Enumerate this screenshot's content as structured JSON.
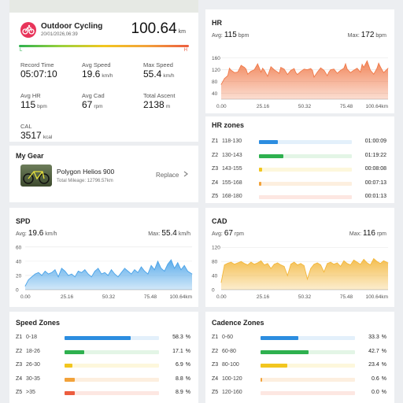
{
  "summary": {
    "title": "Outdoor Cycling",
    "date": "20/01/2026,06:39",
    "distance": "100.64",
    "distance_unit": "km",
    "bar_left": "L",
    "bar_right": "H",
    "stats": [
      {
        "label": "Record Time",
        "value": "05:07:10",
        "unit": ""
      },
      {
        "label": "Avg Speed",
        "value": "19.6",
        "unit": "km/h"
      },
      {
        "label": "Max Speed",
        "value": "55.4",
        "unit": "km/h"
      },
      {
        "label": "Avg HR",
        "value": "115",
        "unit": "bpm"
      },
      {
        "label": "Avg Cad",
        "value": "67",
        "unit": "rpm"
      },
      {
        "label": "Total Ascent",
        "value": "2138",
        "unit": "m"
      },
      {
        "label": "CAL",
        "value": "3517",
        "unit": "kcal"
      }
    ]
  },
  "gear": {
    "heading": "My Gear",
    "name": "Polygon Helios 900",
    "mileage": "Total Mileage: 12796.57km",
    "replace_label": "Replace",
    "chevron_icon": "chevron-right-icon"
  },
  "hr_chart": {
    "title": "HR",
    "avg_label": "Avg:",
    "avg_value": "115",
    "avg_unit": "bpm",
    "max_label": "Max:",
    "max_value": "172",
    "max_unit": "bpm"
  },
  "spd_chart": {
    "title": "SPD",
    "avg_label": "Avg:",
    "avg_value": "19.6",
    "avg_unit": "km/h",
    "max_label": "Max:",
    "max_value": "55.4",
    "max_unit": "km/h"
  },
  "cad_chart": {
    "title": "CAD",
    "avg_label": "Avg:",
    "avg_value": "67",
    "avg_unit": "rpm",
    "max_label": "Max:",
    "max_value": "116",
    "max_unit": "rpm"
  },
  "chart_data": [
    {
      "type": "area",
      "id": "hr",
      "x_ticks": [
        "0.00",
        "25.16",
        "50.32",
        "75.48",
        "100.64km"
      ],
      "y_ticks": [
        "40",
        "80",
        "120",
        "160"
      ],
      "xlim": [
        0,
        100.64
      ],
      "ylim": [
        20,
        175
      ],
      "color": "#f07a4a",
      "x": [
        0,
        2,
        4,
        5,
        6,
        8,
        10,
        12,
        14,
        15,
        16,
        18,
        20,
        22,
        24,
        25,
        26,
        28,
        30,
        32,
        34,
        35,
        36,
        38,
        40,
        42,
        44,
        45,
        46,
        48,
        50,
        52,
        54,
        55,
        56,
        58,
        60,
        62,
        64,
        65,
        66,
        68,
        70,
        72,
        74,
        75,
        76,
        78,
        80,
        82,
        84,
        85,
        86,
        88,
        90,
        92,
        94,
        95,
        96,
        98,
        100.64
      ],
      "y": [
        70,
        90,
        100,
        125,
        118,
        110,
        112,
        135,
        128,
        122,
        105,
        115,
        120,
        140,
        112,
        125,
        118,
        98,
        130,
        120,
        112,
        108,
        128,
        122,
        104,
        118,
        124,
        110,
        104,
        114,
        122,
        120,
        124,
        118,
        95,
        112,
        126,
        118,
        100,
        112,
        120,
        122,
        108,
        118,
        125,
        140,
        122,
        110,
        118,
        125,
        112,
        138,
        128,
        150,
        118,
        105,
        125,
        142,
        130,
        110,
        125
      ]
    },
    {
      "type": "area",
      "id": "spd",
      "x_ticks": [
        "0.00",
        "25.16",
        "50.32",
        "75.48",
        "100.64km"
      ],
      "y_ticks": [
        "0",
        "20",
        "40",
        "60"
      ],
      "xlim": [
        0,
        100.64
      ],
      "ylim": [
        0,
        62
      ],
      "color": "#4aa3e8",
      "x": [
        0,
        2,
        4,
        6,
        8,
        10,
        12,
        14,
        16,
        18,
        20,
        22,
        24,
        26,
        28,
        30,
        32,
        34,
        36,
        38,
        40,
        42,
        44,
        46,
        48,
        50,
        52,
        54,
        56,
        58,
        60,
        62,
        64,
        66,
        68,
        70,
        72,
        74,
        76,
        78,
        80,
        82,
        84,
        86,
        88,
        90,
        92,
        94,
        96,
        98,
        100.64
      ],
      "y": [
        5,
        14,
        18,
        22,
        24,
        20,
        26,
        22,
        24,
        28,
        18,
        30,
        26,
        20,
        22,
        18,
        26,
        24,
        28,
        22,
        18,
        26,
        30,
        22,
        24,
        20,
        28,
        22,
        18,
        24,
        30,
        26,
        22,
        28,
        24,
        32,
        26,
        22,
        34,
        28,
        40,
        30,
        26,
        36,
        42,
        30,
        38,
        28,
        34,
        26,
        22
      ]
    },
    {
      "type": "area",
      "id": "cad",
      "x_ticks": [
        "0.00",
        "25.16",
        "50.32",
        "75.48",
        "100.64km"
      ],
      "y_ticks": [
        "0",
        "40",
        "80",
        "120"
      ],
      "xlim": [
        0,
        100.64
      ],
      "ylim": [
        0,
        125
      ],
      "color": "#f3b73b",
      "x": [
        0,
        2,
        4,
        6,
        8,
        10,
        12,
        14,
        16,
        18,
        20,
        22,
        24,
        26,
        28,
        30,
        32,
        34,
        36,
        38,
        40,
        42,
        44,
        46,
        48,
        50,
        52,
        54,
        56,
        58,
        60,
        62,
        64,
        66,
        68,
        70,
        72,
        74,
        76,
        78,
        80,
        82,
        84,
        86,
        88,
        90,
        92,
        94,
        96,
        98,
        100.64
      ],
      "y": [
        20,
        70,
        75,
        78,
        72,
        76,
        80,
        74,
        70,
        78,
        72,
        76,
        82,
        70,
        74,
        60,
        72,
        76,
        70,
        66,
        40,
        72,
        78,
        70,
        74,
        68,
        30,
        60,
        72,
        76,
        70,
        50,
        74,
        78,
        72,
        76,
        66,
        82,
        74,
        70,
        84,
        78,
        72,
        86,
        76,
        70,
        88,
        80,
        74,
        82,
        76
      ]
    }
  ],
  "hr_zones": {
    "title": "HR zones",
    "rows": [
      {
        "zone": "Z1",
        "range": "118-130",
        "value": "01:00:09",
        "fraction": 0.2,
        "color": "#2c8de0",
        "track": "#e3f0fb"
      },
      {
        "zone": "Z2",
        "range": "130-143",
        "value": "01:19:22",
        "fraction": 0.26,
        "color": "#2eb14f",
        "track": "#e3f5e6"
      },
      {
        "zone": "Z3",
        "range": "143-155",
        "value": "00:08:08",
        "fraction": 0.03,
        "color": "#f2c61f",
        "track": "#fdf7dc"
      },
      {
        "zone": "Z4",
        "range": "155-168",
        "value": "00:07:13",
        "fraction": 0.025,
        "color": "#f2a23a",
        "track": "#fdefdf"
      },
      {
        "zone": "Z5",
        "range": "168-180",
        "value": "00:01:13",
        "fraction": 0.0,
        "color": "#ec5d3f",
        "track": "#fde7e2"
      }
    ]
  },
  "speed_zones": {
    "title": "Speed Zones",
    "rows": [
      {
        "zone": "Z1",
        "range": "0-18",
        "value": "58.3",
        "unit": "%",
        "fraction": 0.583,
        "color": "#2c8de0",
        "track": "#e3f0fb"
      },
      {
        "zone": "Z2",
        "range": "18-26",
        "value": "17.1",
        "unit": "%",
        "fraction": 0.171,
        "color": "#2eb14f",
        "track": "#e3f5e6"
      },
      {
        "zone": "Z3",
        "range": "26-30",
        "value": "6.9",
        "unit": "%",
        "fraction": 0.069,
        "color": "#f2c61f",
        "track": "#fdf7dc"
      },
      {
        "zone": "Z4",
        "range": "30-35",
        "value": "8.8",
        "unit": "%",
        "fraction": 0.088,
        "color": "#f2a23a",
        "track": "#fdefdf"
      },
      {
        "zone": "Z5",
        "range": ">35",
        "value": "8.9",
        "unit": "%",
        "fraction": 0.089,
        "color": "#ec5d3f",
        "track": "#fde7e2"
      }
    ]
  },
  "cadence_zones": {
    "title": "Cadence Zones",
    "rows": [
      {
        "zone": "Z1",
        "range": "0-60",
        "value": "33.3",
        "unit": "%",
        "fraction": 0.333,
        "color": "#2c8de0",
        "track": "#e3f0fb"
      },
      {
        "zone": "Z2",
        "range": "60-80",
        "value": "42.7",
        "unit": "%",
        "fraction": 0.427,
        "color": "#2eb14f",
        "track": "#e3f5e6"
      },
      {
        "zone": "Z3",
        "range": "80-100",
        "value": "23.4",
        "unit": "%",
        "fraction": 0.234,
        "color": "#f2c61f",
        "track": "#fdf7dc"
      },
      {
        "zone": "Z4",
        "range": "100-120",
        "value": "0.6",
        "unit": "%",
        "fraction": 0.006,
        "color": "#f2a23a",
        "track": "#fdefdf"
      },
      {
        "zone": "Z5",
        "range": "120-160",
        "value": "0.0",
        "unit": "%",
        "fraction": 0.0,
        "color": "#ec5d3f",
        "track": "#fde7e2"
      }
    ]
  }
}
